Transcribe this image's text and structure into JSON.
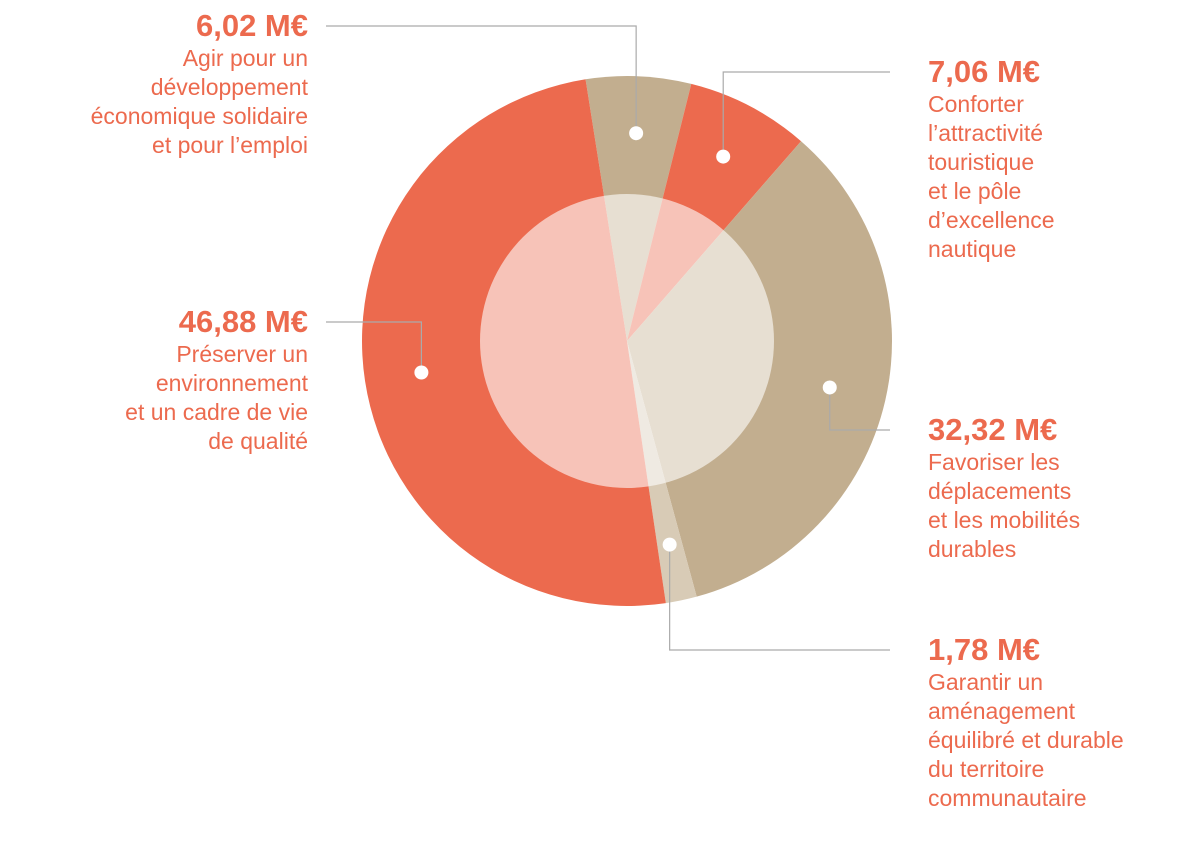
{
  "chart_data": {
    "type": "pie",
    "categories": [
      "Agir pour un\ndéveloppement\néconomique solidaire\net pour l’emploi",
      "Conforter\nl’attractivité\ntouristique\net le pôle\nd’excellence\nnautique",
      "Favoriser les\ndéplacements\net les mobilités\ndurables",
      "Garantir un\naménagement\néquilibré et durable\ndu territoire\ncommunautaire",
      "Préserver un\nenvironnement\net un cadre de vie\nde qualité"
    ],
    "values": [
      6.02,
      7.06,
      32.32,
      1.78,
      46.88
    ],
    "value_labels": [
      "6,02 M€",
      "7,06 M€",
      "32,32 M€",
      "1,78 M€",
      "46,88 M€"
    ],
    "colors": [
      "#c2ae8f",
      "#ec6a4e",
      "#c2ae8f",
      "#d8cbb6",
      "#ec6a4e"
    ]
  }
}
